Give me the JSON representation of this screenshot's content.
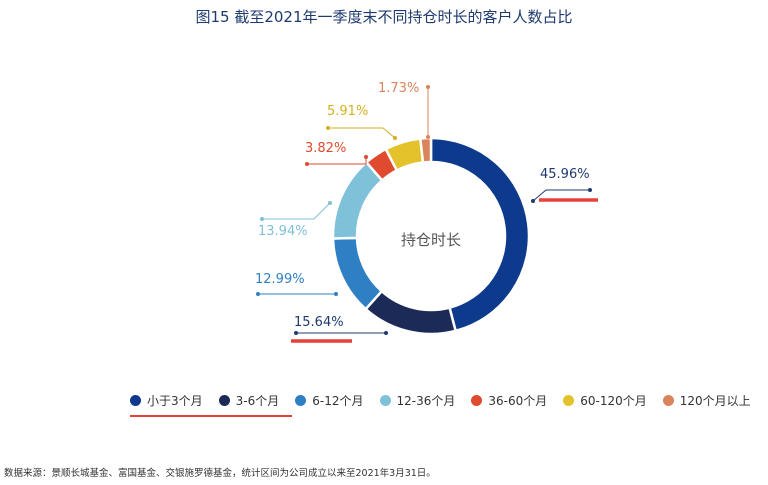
{
  "title": "图15   截至2021年一季度末不同持仓时长的客户人数占比",
  "source": "数据来源：景顺长城基金、富国基金、交银施罗德基金，统计区间为公司成立以来至2021年3月31日。",
  "chart_data": {
    "type": "pie",
    "center_label": "持仓时长",
    "slices": [
      {
        "name": "小于3个月",
        "value": 45.96,
        "label": "45.96%",
        "color": "#0d3a8c",
        "label_color": "#1e3a6e"
      },
      {
        "name": "3-6个月",
        "value": 15.64,
        "label": "15.64%",
        "color": "#1c2a58",
        "label_color": "#1e3a6e"
      },
      {
        "name": "6-12个月",
        "value": 12.99,
        "label": "12.99%",
        "color": "#2f7fc4",
        "label_color": "#2f7fc4"
      },
      {
        "name": "12-36个月",
        "value": 13.94,
        "label": "13.94%",
        "color": "#7fc1d9",
        "label_color": "#7fc1d9"
      },
      {
        "name": "36-60个月",
        "value": 3.82,
        "label": "3.82%",
        "color": "#e04a2f",
        "label_color": "#e04a2f"
      },
      {
        "name": "60-120个月",
        "value": 5.91,
        "label": "5.91%",
        "color": "#e3c22c",
        "label_color": "#d4b020"
      },
      {
        "name": "120个月以上",
        "value": 1.73,
        "label": "1.73%",
        "color": "#d9845a",
        "label_color": "#d9845a"
      }
    ],
    "legend_position": "bottom"
  },
  "highlight_color": "#e8413c"
}
